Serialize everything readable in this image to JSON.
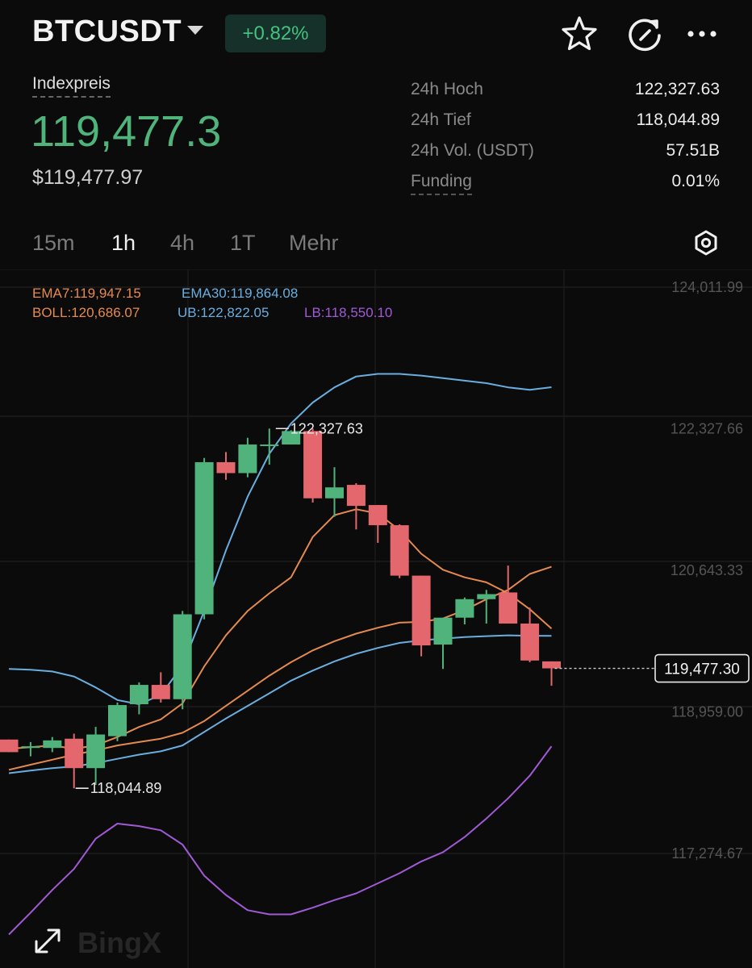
{
  "header": {
    "symbol": "BTCUSDT",
    "change": "+0.82%"
  },
  "price": {
    "index_label": "Indexpreis",
    "index_price": "119,477.3",
    "usd_price": "$119,477.97"
  },
  "stats": [
    {
      "label": "24h Hoch",
      "value": "122,327.63"
    },
    {
      "label": "24h Tief",
      "value": "118,044.89"
    },
    {
      "label": "24h Vol. (USDT)",
      "value": "57.51B"
    },
    {
      "label": "Funding",
      "value": "0.01%"
    }
  ],
  "timeframes": [
    "15m",
    "1h",
    "4h",
    "1T",
    "Mehr"
  ],
  "active_timeframe": "1h",
  "indicators": {
    "ema7": "EMA7:119,947.15",
    "ema30": "EMA30:119,864.08",
    "boll": "BOLL:120,686.07",
    "ub": "UB:122,822.05",
    "lb": "LB:118,550.10"
  },
  "watermark": "BingX",
  "colors": {
    "up": "#4fb37b",
    "down": "#e5676e",
    "ema7": "#e58a4f",
    "ema30": "#6aaee0",
    "ub": "#6aaee0",
    "boll": "#e58a4f",
    "lb": "#a05ad6"
  },
  "chart_data": {
    "type": "candlestick",
    "y_axis_labels": [
      "124,011.99",
      "122,327.66",
      "120,643.33",
      "118,959.00",
      "117,274.67"
    ],
    "ylim": [
      116600,
      124011.99
    ],
    "current_price_label": "119,477.30",
    "high_marker": "122,327.63",
    "low_marker": "118,044.89",
    "candles": [
      {
        "o": 118630,
        "h": 118630,
        "c": 118480,
        "l": 118480
      },
      {
        "o": 118530,
        "h": 118600,
        "c": 118550,
        "l": 118430
      },
      {
        "o": 118530,
        "h": 118660,
        "c": 118620,
        "l": 118480
      },
      {
        "o": 118640,
        "h": 118700,
        "c": 118290,
        "l": 118050
      },
      {
        "o": 118290,
        "h": 118780,
        "c": 118690,
        "l": 118090
      },
      {
        "o": 118670,
        "h": 119070,
        "c": 119040,
        "l": 118610
      },
      {
        "o": 119050,
        "h": 119310,
        "c": 119280,
        "l": 118930
      },
      {
        "o": 119280,
        "h": 119430,
        "c": 119110,
        "l": 119070
      },
      {
        "o": 119110,
        "h": 120160,
        "c": 120120,
        "l": 118990
      },
      {
        "o": 120120,
        "h": 121980,
        "c": 121930,
        "l": 120060
      },
      {
        "o": 121930,
        "h": 122050,
        "c": 121800,
        "l": 121720
      },
      {
        "o": 121800,
        "h": 122220,
        "c": 122140,
        "l": 121750
      },
      {
        "o": 122140,
        "h": 122330,
        "c": 122140,
        "l": 121900
      },
      {
        "o": 122140,
        "h": 122310,
        "c": 122300,
        "l": 122140
      },
      {
        "o": 122300,
        "h": 122330,
        "c": 121500,
        "l": 121450
      },
      {
        "o": 121500,
        "h": 121870,
        "c": 121630,
        "l": 121280
      },
      {
        "o": 121660,
        "h": 121680,
        "c": 121410,
        "l": 121130
      },
      {
        "o": 121420,
        "h": 121420,
        "c": 121180,
        "l": 120970
      },
      {
        "o": 121180,
        "h": 121190,
        "c": 120580,
        "l": 120550
      },
      {
        "o": 120580,
        "h": 120580,
        "c": 119750,
        "l": 119620
      },
      {
        "o": 119760,
        "h": 120070,
        "c": 120080,
        "l": 119470
      },
      {
        "o": 120080,
        "h": 120320,
        "c": 120300,
        "l": 120000
      },
      {
        "o": 120300,
        "h": 120410,
        "c": 120360,
        "l": 120010
      },
      {
        "o": 120380,
        "h": 120700,
        "c": 120010,
        "l": 120010
      },
      {
        "o": 120010,
        "h": 120200,
        "c": 119570,
        "l": 119550
      },
      {
        "o": 119560,
        "h": 119560,
        "c": 119477,
        "l": 119270
      }
    ],
    "series": [
      {
        "name": "EMA7",
        "values": [
          118520,
          118540,
          118560,
          118520,
          118560,
          118660,
          118780,
          118870,
          119060,
          119500,
          119870,
          120160,
          120370,
          120560,
          121040,
          121300,
          121370,
          121320,
          121120,
          120840,
          120650,
          120560,
          120500,
          120370,
          120180,
          119950
        ]
      },
      {
        "name": "EMA30",
        "values": [
          118230,
          118260,
          118290,
          118310,
          118350,
          118400,
          118450,
          118490,
          118560,
          118720,
          118880,
          119030,
          119180,
          119330,
          119450,
          119560,
          119650,
          119720,
          119780,
          119810,
          119830,
          119850,
          119860,
          119870,
          119865,
          119864
        ]
      },
      {
        "name": "BOLL",
        "values": [
          118270,
          118330,
          118390,
          118450,
          118500,
          118560,
          118600,
          118640,
          118710,
          118850,
          119030,
          119210,
          119390,
          119550,
          119690,
          119800,
          119890,
          119960,
          120020,
          120030,
          120070,
          120170,
          120300,
          120410,
          120600,
          120686
        ]
      },
      {
        "name": "UB",
        "values": [
          119470,
          119460,
          119440,
          119380,
          119250,
          119100,
          119050,
          119160,
          119510,
          120160,
          120880,
          121520,
          122030,
          122390,
          122640,
          122820,
          122950,
          122980,
          122980,
          122960,
          122930,
          122900,
          122870,
          122820,
          122790,
          122822
        ]
      },
      {
        "name": "LB",
        "values": [
          116310,
          116570,
          116840,
          117090,
          117450,
          117630,
          117600,
          117550,
          117380,
          117010,
          116780,
          116600,
          116550,
          116550,
          116630,
          116720,
          116800,
          116920,
          117040,
          117180,
          117290,
          117470,
          117690,
          117930,
          118200,
          118550
        ]
      }
    ]
  }
}
